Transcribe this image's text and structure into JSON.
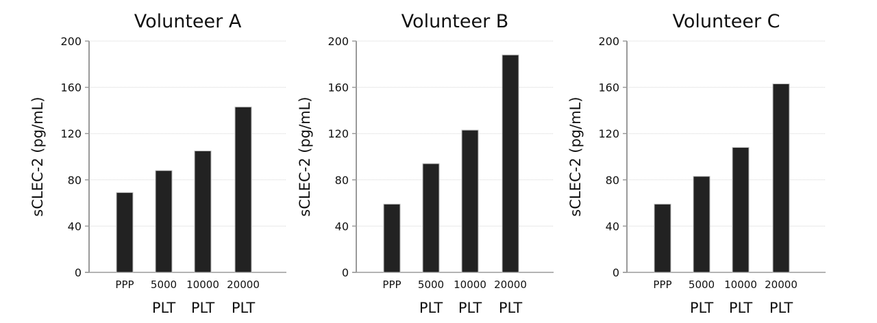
{
  "chart_data": [
    {
      "type": "bar",
      "title": "Volunteer A",
      "ylabel": "sCLEC-2 (pg/mL)",
      "xlabel": "",
      "ylim": [
        0,
        200
      ],
      "yticks": [
        0,
        40,
        80,
        120,
        160,
        200
      ],
      "grid": true,
      "categories": [
        "PPP",
        "5000",
        "10000",
        "20000"
      ],
      "category_units": [
        "",
        "PLT",
        "PLT",
        "PLT"
      ],
      "values": [
        69,
        88,
        105,
        143
      ],
      "bar_color": "#222222"
    },
    {
      "type": "bar",
      "title": "Volunteer B",
      "ylabel": "sCLEC-2 (pg/mL)",
      "xlabel": "",
      "ylim": [
        0,
        200
      ],
      "yticks": [
        0,
        40,
        80,
        120,
        160,
        200
      ],
      "grid": true,
      "categories": [
        "PPP",
        "5000",
        "10000",
        "20000"
      ],
      "category_units": [
        "",
        "PLT",
        "PLT",
        "PLT"
      ],
      "values": [
        59,
        94,
        123,
        188
      ],
      "bar_color": "#222222"
    },
    {
      "type": "bar",
      "title": "Volunteer C",
      "ylabel": "sCLEC-2 (pg/mL)",
      "xlabel": "",
      "ylim": [
        0,
        200
      ],
      "yticks": [
        0,
        40,
        80,
        120,
        160,
        200
      ],
      "grid": true,
      "categories": [
        "PPP",
        "5000",
        "10000",
        "20000"
      ],
      "category_units": [
        "",
        "PLT",
        "PLT",
        "PLT"
      ],
      "values": [
        59,
        83,
        108,
        163
      ],
      "bar_color": "#222222"
    }
  ]
}
